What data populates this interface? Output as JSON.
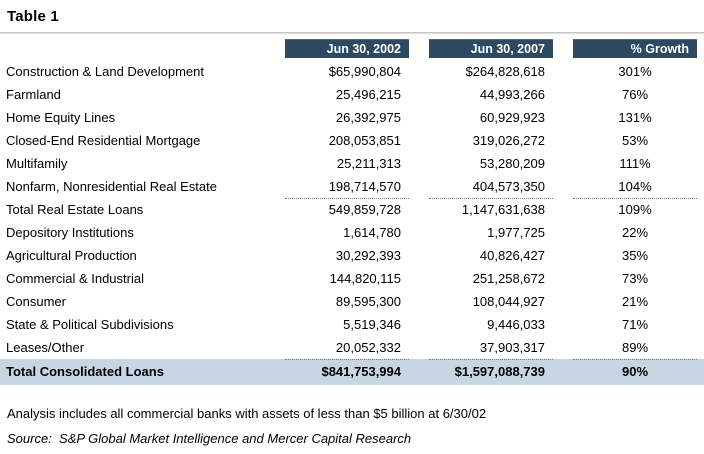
{
  "title": "Table 1",
  "chart_data": {
    "type": "table",
    "title": "Table 1",
    "columns": [
      "Jun 30, 2002",
      "Jun 30, 2007",
      "% Growth"
    ],
    "rows": [
      {
        "label": "Construction & Land Development",
        "jun_2002": "$65,990,804",
        "jun_2007": "$264,828,618",
        "growth": "301%",
        "style": "normal"
      },
      {
        "label": "Farmland",
        "jun_2002": "25,496,215",
        "jun_2007": "44,993,266",
        "growth": "76%",
        "style": "normal"
      },
      {
        "label": "Home Equity Lines",
        "jun_2002": "26,392,975",
        "jun_2007": "60,929,923",
        "growth": "131%",
        "style": "normal"
      },
      {
        "label": "Closed-End Residential Mortgage",
        "jun_2002": "208,053,851",
        "jun_2007": "319,026,272",
        "growth": "53%",
        "style": "normal"
      },
      {
        "label": "Multifamily",
        "jun_2002": "25,211,313",
        "jun_2007": "53,280,209",
        "growth": "111%",
        "style": "normal"
      },
      {
        "label": "Nonfarm, Nonresidential Real Estate",
        "jun_2002": "198,714,570",
        "jun_2007": "404,573,350",
        "growth": "104%",
        "style": "dotted"
      },
      {
        "label": "Total Real Estate Loans",
        "jun_2002": "549,859,728",
        "jun_2007": "1,147,631,638",
        "growth": "109%",
        "style": "normal"
      },
      {
        "label": "Depository Institutions",
        "jun_2002": "1,614,780",
        "jun_2007": "1,977,725",
        "growth": "22%",
        "style": "normal"
      },
      {
        "label": "Agricultural Production",
        "jun_2002": "30,292,393",
        "jun_2007": "40,826,427",
        "growth": "35%",
        "style": "normal"
      },
      {
        "label": "Commercial & Industrial",
        "jun_2002": "144,820,115",
        "jun_2007": "251,258,672",
        "growth": "73%",
        "style": "normal"
      },
      {
        "label": "Consumer",
        "jun_2002": "89,595,300",
        "jun_2007": "108,044,927",
        "growth": "21%",
        "style": "normal"
      },
      {
        "label": "State & Political Subdivisions",
        "jun_2002": "5,519,346",
        "jun_2007": "9,446,033",
        "growth": "71%",
        "style": "normal"
      },
      {
        "label": "Leases/Other",
        "jun_2002": "20,052,332",
        "jun_2007": "37,903,317",
        "growth": "89%",
        "style": "dotted"
      },
      {
        "label": "Total Consolidated Loans",
        "jun_2002": "$841,753,994",
        "jun_2007": "$1,597,088,739",
        "growth": "90%",
        "style": "total"
      }
    ]
  },
  "footnote": "Analysis includes all commercial banks with assets of less than $5 billion at 6/30/02",
  "source": "Source:  S&P Global Market Intelligence and Mercer Capital Research",
  "colors": {
    "header_bg": "#2E4A63",
    "total_row_bg": "#C8D6E4",
    "rule": "#BDBDBD",
    "dotted_line": "#777777"
  }
}
